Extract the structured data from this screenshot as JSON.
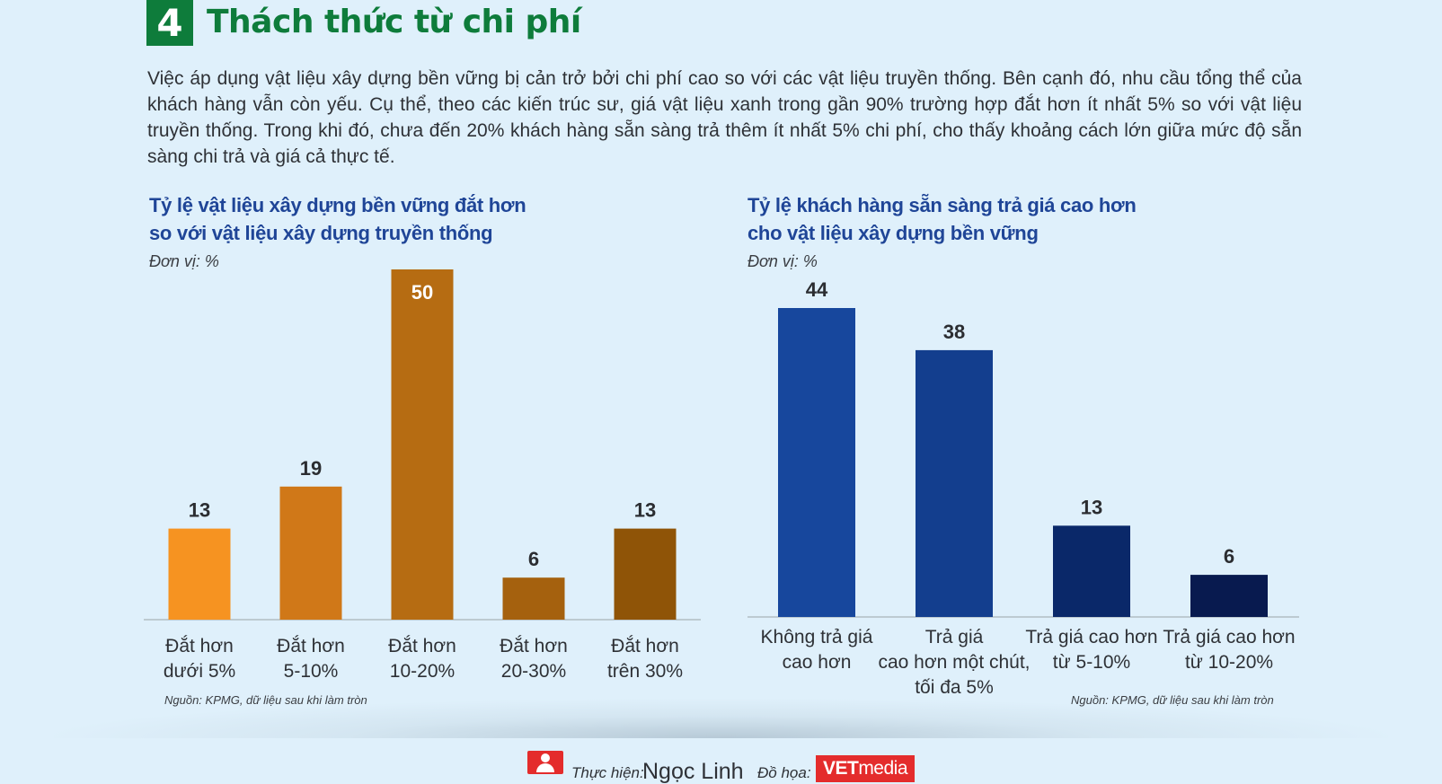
{
  "header": {
    "number": "4",
    "title": "Thách thức từ chi phí"
  },
  "intro": "Việc áp dụng vật liệu xây dựng bền vững bị cản trở bởi chi phí cao so với các vật liệu truyền thống. Bên cạnh đó, nhu cầu tổng thể của khách hàng vẫn còn yếu. Cụ thể, theo các kiến trúc sư, giá vật liệu xanh trong gần 90% trường hợp đắt hơn ít nhất 5% so với vật liệu truyền thống. Trong khi đó, chưa đến 20% khách hàng sẵn sàng trả thêm ít nhất 5% chi phí, cho thấy khoảng cách lớn giữa mức độ sẵn sàng chi trả và giá cả thực tế.",
  "chart_data": [
    {
      "type": "bar",
      "title": [
        "Tỷ lệ vật liệu xây dựng bền vững đắt hơn",
        "so với vật liệu xây dựng truyền thống"
      ],
      "unit": "Đơn vị: %",
      "categories": [
        [
          "Đắt hơn",
          "dưới 5%"
        ],
        [
          "Đắt hơn",
          "5-10%"
        ],
        [
          "Đắt hơn",
          "10-20%"
        ],
        [
          "Đắt hơn",
          "20-30%"
        ],
        [
          "Đắt hơn",
          "trên 30%"
        ]
      ],
      "values": [
        13,
        19,
        50,
        6,
        13
      ],
      "value_labels": [
        "13",
        "19",
        "50",
        "6",
        "13"
      ],
      "colors": [
        "#f69321",
        "#d07818",
        "#b66c12",
        "#a5610e",
        "#8f5407"
      ],
      "ylim": [
        0,
        50
      ],
      "source": "Nguồn: KPMG, dữ liệu sau khi làm tròn"
    },
    {
      "type": "bar",
      "title": [
        "Tỷ lệ khách hàng sẵn sàng trả giá cao hơn",
        "cho vật liệu xây dựng bền vững"
      ],
      "unit": "Đơn vị: %",
      "categories": [
        [
          "Không trả giá",
          "cao hơn"
        ],
        [
          "Trả giá",
          "cao hơn một chút,",
          "tối đa 5%"
        ],
        [
          "Trả giá cao hơn",
          "từ 5-10%"
        ],
        [
          "Trả giá cao hơn",
          "từ 10-20%"
        ]
      ],
      "values": [
        44,
        38,
        13,
        6
      ],
      "value_labels": [
        "44",
        "38",
        "13",
        "6"
      ],
      "colors": [
        "#17479d",
        "#133e8e",
        "#0a2869",
        "#081a4f"
      ],
      "ylim": [
        0,
        44
      ],
      "source": "Nguồn: KPMG, dữ liệu sau khi làm tròn"
    }
  ],
  "footer": {
    "author_label": "Thực hiện:",
    "author_name": "Ngọc Linh",
    "graphics_label": "Đồ họa:",
    "logo_vet": "VET",
    "logo_media": "media"
  }
}
